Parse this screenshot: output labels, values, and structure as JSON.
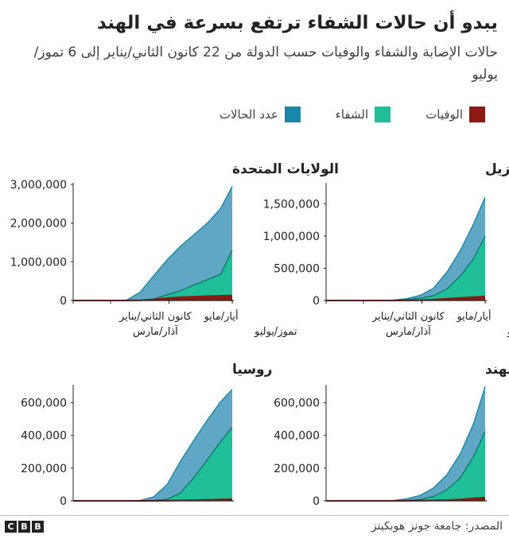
{
  "header": {
    "title": "يبدو أن حالات الشفاء ترتفع بسرعة في الهند",
    "subtitle": "حالات الإصابة والشفاء والوفيات حسب الدولة من 22 كانون الثاني/يناير إلى 6 تموز/يوليو"
  },
  "legend": [
    {
      "label": "الوفيات",
      "color": "#8b1a12"
    },
    {
      "label": "الشفاء",
      "color": "#1fbf97"
    },
    {
      "label": "عدد الحالات",
      "color": "#1a86a8"
    }
  ],
  "colors": {
    "cases": "#5fa7c4",
    "cases_line": "#1a86a8",
    "recovered": "#1fbf97",
    "recovered_line": "#0f7a66",
    "deaths": "#8b1a12",
    "axis": "#222222"
  },
  "x_labels": {
    "jan": "كانون الثاني/يناير",
    "mar": "آذار/مارس",
    "may": "أيار/مايو",
    "jul": "تموز/يوليو"
  },
  "footer": {
    "source": "المصدر: جامعة جونز هوبكينز",
    "logo": [
      "B",
      "B",
      "C"
    ]
  },
  "chart_data": [
    {
      "type": "area",
      "title": "البرازيل",
      "x": [
        "2020-01-22",
        "2020-02-05",
        "2020-02-19",
        "2020-03-04",
        "2020-03-18",
        "2020-04-01",
        "2020-04-15",
        "2020-04-29",
        "2020-05-13",
        "2020-05-27",
        "2020-06-10",
        "2020-06-24",
        "2020-07-06"
      ],
      "ylim": [
        0,
        1800000
      ],
      "yticks": [
        0,
        500000,
        1000000,
        1500000
      ],
      "ytick_labels": [
        "0",
        "500,000",
        "1,000,000",
        "1,500,000"
      ],
      "series": [
        {
          "name": "عدد الحالات",
          "values": [
            0,
            0,
            0,
            4,
            428,
            6931,
            28320,
            79361,
            189157,
            438238,
            772416,
            1188631,
            1603055
          ]
        },
        {
          "name": "الشفاء",
          "values": [
            0,
            0,
            0,
            0,
            2,
            127,
            14026,
            34132,
            74566,
            177604,
            378257,
            648975,
            1000000
          ]
        },
        {
          "name": "الوفيات",
          "values": [
            0,
            0,
            0,
            0,
            4,
            244,
            1736,
            5513,
            12988,
            26754,
            39680,
            52645,
            64867
          ]
        }
      ]
    },
    {
      "type": "area",
      "title": "الولايات المتحدة",
      "x": [
        "2020-01-22",
        "2020-02-05",
        "2020-02-19",
        "2020-03-04",
        "2020-03-18",
        "2020-04-01",
        "2020-04-15",
        "2020-04-29",
        "2020-05-13",
        "2020-05-27",
        "2020-06-10",
        "2020-06-24",
        "2020-07-06"
      ],
      "ylim": [
        0,
        3000000
      ],
      "yticks": [
        0,
        1000000,
        2000000,
        3000000
      ],
      "ytick_labels": [
        "0",
        "1,000,000",
        "2,000,000",
        "3,000,000"
      ],
      "series": [
        {
          "name": "عدد الحالات",
          "values": [
            1,
            12,
            15,
            158,
            9400,
            215000,
            640000,
            1050000,
            1400000,
            1700000,
            2000000,
            2380000,
            2950000
          ]
        },
        {
          "name": "الشفاء",
          "values": [
            0,
            0,
            3,
            8,
            110,
            8500,
            40000,
            150000,
            250000,
            400000,
            540000,
            680000,
            1300000
          ]
        },
        {
          "name": "الوفيات",
          "values": [
            0,
            0,
            0,
            11,
            150,
            5100,
            28000,
            61000,
            84000,
            101000,
            113000,
            122000,
            131000
          ]
        }
      ]
    },
    {
      "type": "area",
      "title": "الهند",
      "x": [
        "2020-01-22",
        "2020-02-05",
        "2020-02-19",
        "2020-03-04",
        "2020-03-18",
        "2020-04-01",
        "2020-04-15",
        "2020-04-29",
        "2020-05-13",
        "2020-05-27",
        "2020-06-10",
        "2020-06-24",
        "2020-07-06"
      ],
      "ylim": [
        0,
        700000
      ],
      "yticks": [
        0,
        200000,
        400000,
        600000
      ],
      "ytick_labels": [
        "0",
        "200,000",
        "400,000",
        "600,000"
      ],
      "series": [
        {
          "name": "عدد الحالات",
          "values": [
            0,
            3,
            3,
            28,
            151,
            1998,
            12380,
            33062,
            78003,
            158333,
            287155,
            473105,
            697413
          ]
        },
        {
          "name": "الشفاء",
          "values": [
            0,
            0,
            3,
            3,
            14,
            148,
            1489,
            8437,
            26235,
            67692,
            141029,
            271697,
            424433
          ]
        },
        {
          "name": "الوفيات",
          "values": [
            0,
            0,
            0,
            0,
            3,
            58,
            414,
            1079,
            2549,
            4531,
            8102,
            14894,
            19693
          ]
        }
      ]
    },
    {
      "type": "area",
      "title": "روسيا",
      "x": [
        "2020-01-22",
        "2020-02-05",
        "2020-02-19",
        "2020-03-04",
        "2020-03-18",
        "2020-04-01",
        "2020-04-15",
        "2020-04-29",
        "2020-05-13",
        "2020-05-27",
        "2020-06-10",
        "2020-06-24",
        "2020-07-06"
      ],
      "ylim": [
        0,
        700000
      ],
      "yticks": [
        0,
        200000,
        400000,
        600000
      ],
      "ytick_labels": [
        "0",
        "200,000",
        "400,000",
        "600,000"
      ],
      "series": [
        {
          "name": "عدد الحالات",
          "values": [
            0,
            2,
            2,
            3,
            147,
            2777,
            24490,
            99399,
            242271,
            370680,
            493657,
            606881,
            681251
          ]
        },
        {
          "name": "الشفاء",
          "values": [
            0,
            0,
            2,
            2,
            8,
            190,
            1986,
            10286,
            48003,
            142208,
            251457,
            363051,
            450750
          ]
        },
        {
          "name": "الوفيات",
          "values": [
            0,
            0,
            0,
            0,
            0,
            24,
            198,
            972,
            2212,
            3968,
            6358,
            8513,
            10161
          ]
        }
      ]
    }
  ]
}
